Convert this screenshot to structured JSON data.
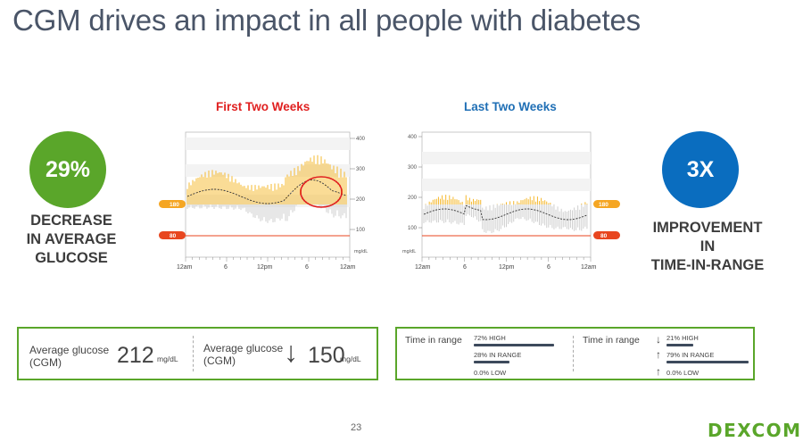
{
  "slide": {
    "title": "CGM drives an impact in all people with diabetes",
    "page_number": "23",
    "logo_text": "DEXCOM"
  },
  "left_stat": {
    "value": "29%",
    "label_lines": [
      "DECREASE",
      "IN AVERAGE",
      "GLUCOSE"
    ],
    "color": "#5aa62a"
  },
  "right_stat": {
    "value": "3X",
    "label_lines": [
      "IMPROVEMENT",
      "IN",
      "TIME-IN-RANGE"
    ],
    "color": "#0a6dbf"
  },
  "charts": {
    "first": {
      "heading": "First Two Weeks",
      "y_ticks": [
        "400",
        "300",
        "200",
        "100"
      ],
      "unit": "mg/dL",
      "x_ticks": [
        "12am",
        "6",
        "12pm",
        "6",
        "12am"
      ],
      "high_marker": "180",
      "low_marker": "80"
    },
    "last": {
      "heading": "Last Two Weeks",
      "y_ticks": [
        "400",
        "300",
        "200",
        "100"
      ],
      "unit": "mg/dL",
      "x_ticks": [
        "12am",
        "6",
        "12pm",
        "6",
        "12am"
      ],
      "high_marker": "180",
      "low_marker": "80"
    }
  },
  "avg_box": {
    "label1_line1": "Average glucose",
    "label1_line2": "(CGM)",
    "value1": "212",
    "unit1": "mg/dL",
    "label2_line1": "Average glucose",
    "label2_line2": "(CGM)",
    "arrow2": "↓",
    "value2": "150",
    "unit2": "mg/dL"
  },
  "tir_box": {
    "label1": "Time in range",
    "high1": "72% HIGH",
    "in_range1": "28% IN RANGE",
    "low1": "0.0% LOW",
    "label2": "Time in range",
    "high2": "21% HIGH",
    "in_range2": "79% IN RANGE",
    "low2": "0.0% LOW",
    "arrow_down": "↓",
    "arrow_up": "↑"
  },
  "colors": {
    "accent_green": "#5aa62a",
    "accent_blue": "#0a6dbf",
    "high_marker": "#f5a623",
    "low_marker": "#e8461f"
  }
}
